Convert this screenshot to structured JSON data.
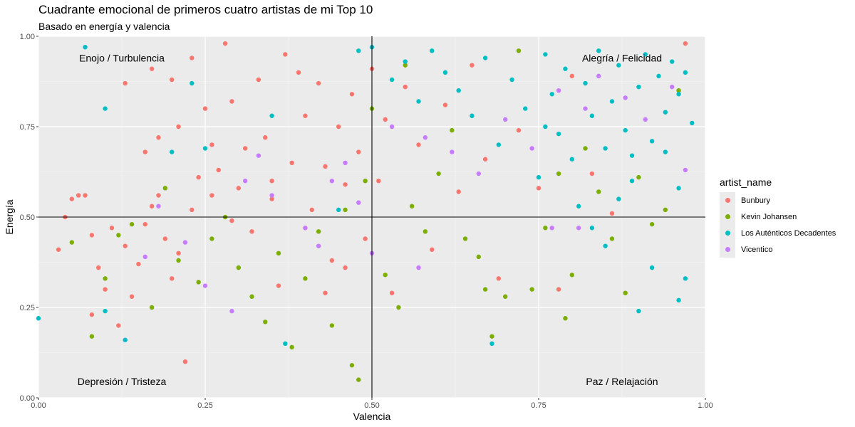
{
  "chart_data": {
    "type": "scatter",
    "title": "Cuadrante emocional de primeros cuatro artistas de mi Top 10",
    "subtitle": "Basado en energía y valencia",
    "xlabel": "Valencia",
    "ylabel": "Energía",
    "xlim": [
      0,
      1
    ],
    "ylim": [
      0,
      1
    ],
    "xticks": [
      "0.00",
      "0.25",
      "0.50",
      "0.75",
      "1.00"
    ],
    "yticks": [
      "0.00",
      "0.25",
      "0.50",
      "0.75",
      "1.00"
    ],
    "reference_lines": {
      "x": 0.5,
      "y": 0.5
    },
    "grid": true,
    "legend": {
      "title": "artist_name",
      "position": "right"
    },
    "quadrant_labels": {
      "top_left": "Enojo / Turbulencia",
      "top_right": "Alegría / Felicidad",
      "bottom_left": "Depresión / Tristeza",
      "bottom_right": "Paz / Relajación"
    },
    "series": [
      {
        "name": "Bunbury",
        "color": "#F8766D",
        "points": [
          [
            0.03,
            0.41
          ],
          [
            0.04,
            0.5
          ],
          [
            0.05,
            0.55
          ],
          [
            0.07,
            0.56
          ],
          [
            0.08,
            0.45
          ],
          [
            0.09,
            0.36
          ],
          [
            0.1,
            0.3
          ],
          [
            0.11,
            0.47
          ],
          [
            0.12,
            0.2
          ],
          [
            0.13,
            0.42
          ],
          [
            0.14,
            0.28
          ],
          [
            0.15,
            0.37
          ],
          [
            0.16,
            0.48
          ],
          [
            0.17,
            0.53
          ],
          [
            0.18,
            0.56
          ],
          [
            0.19,
            0.44
          ],
          [
            0.2,
            0.33
          ],
          [
            0.21,
            0.4
          ],
          [
            0.22,
            0.1
          ],
          [
            0.23,
            0.52
          ],
          [
            0.24,
            0.61
          ],
          [
            0.25,
            0.8
          ],
          [
            0.26,
            0.7
          ],
          [
            0.27,
            0.63
          ],
          [
            0.28,
            0.98
          ],
          [
            0.29,
            0.82
          ],
          [
            0.3,
            0.58
          ],
          [
            0.31,
            0.69
          ],
          [
            0.32,
            0.46
          ],
          [
            0.33,
            0.88
          ],
          [
            0.34,
            0.72
          ],
          [
            0.35,
            0.55
          ],
          [
            0.36,
            0.31
          ],
          [
            0.37,
            0.95
          ],
          [
            0.38,
            0.65
          ],
          [
            0.39,
            0.9
          ],
          [
            0.4,
            0.78
          ],
          [
            0.41,
            0.52
          ],
          [
            0.42,
            0.87
          ],
          [
            0.43,
            0.64
          ],
          [
            0.44,
            0.38
          ],
          [
            0.45,
            0.75
          ],
          [
            0.46,
            0.59
          ],
          [
            0.47,
            0.84
          ],
          [
            0.48,
            0.68
          ],
          [
            0.49,
            0.44
          ],
          [
            0.5,
            0.91
          ],
          [
            0.51,
            0.6
          ],
          [
            0.52,
            0.77
          ],
          [
            0.53,
            0.29
          ],
          [
            0.55,
            0.86
          ],
          [
            0.57,
            0.7
          ],
          [
            0.59,
            0.41
          ],
          [
            0.61,
            0.81
          ],
          [
            0.63,
            0.57
          ],
          [
            0.65,
            0.92
          ],
          [
            0.67,
            0.66
          ],
          [
            0.69,
            0.33
          ],
          [
            0.72,
            0.74
          ],
          [
            0.75,
            0.58
          ],
          [
            0.78,
            0.3
          ],
          [
            0.8,
            0.89
          ],
          [
            0.83,
            0.62
          ],
          [
            0.86,
            0.51
          ],
          [
            0.97,
            0.98
          ],
          [
            0.13,
            0.87
          ],
          [
            0.17,
            0.91
          ],
          [
            0.2,
            0.88
          ],
          [
            0.23,
            0.94
          ],
          [
            0.18,
            0.72
          ],
          [
            0.16,
            0.68
          ],
          [
            0.21,
            0.75
          ],
          [
            0.26,
            0.56
          ],
          [
            0.29,
            0.49
          ],
          [
            0.35,
            0.6
          ],
          [
            0.4,
            0.47
          ],
          [
            0.43,
            0.29
          ],
          [
            0.46,
            0.36
          ],
          [
            0.08,
            0.23
          ],
          [
            0.06,
            0.56
          ]
        ]
      },
      {
        "name": "Kevin Johansen",
        "color": "#7CAE00",
        "points": [
          [
            0.05,
            0.43
          ],
          [
            0.08,
            0.17
          ],
          [
            0.1,
            0.33
          ],
          [
            0.12,
            0.45
          ],
          [
            0.14,
            0.48
          ],
          [
            0.17,
            0.25
          ],
          [
            0.19,
            0.58
          ],
          [
            0.21,
            0.38
          ],
          [
            0.24,
            0.32
          ],
          [
            0.26,
            0.44
          ],
          [
            0.28,
            0.5
          ],
          [
            0.3,
            0.36
          ],
          [
            0.32,
            0.28
          ],
          [
            0.34,
            0.21
          ],
          [
            0.36,
            0.4
          ],
          [
            0.38,
            0.14
          ],
          [
            0.4,
            0.33
          ],
          [
            0.42,
            0.46
          ],
          [
            0.44,
            0.2
          ],
          [
            0.46,
            0.52
          ],
          [
            0.47,
            0.09
          ],
          [
            0.48,
            0.05
          ],
          [
            0.49,
            0.6
          ],
          [
            0.5,
            0.8
          ],
          [
            0.52,
            0.34
          ],
          [
            0.54,
            0.25
          ],
          [
            0.56,
            0.53
          ],
          [
            0.58,
            0.46
          ],
          [
            0.6,
            0.62
          ],
          [
            0.62,
            0.74
          ],
          [
            0.64,
            0.44
          ],
          [
            0.66,
            0.39
          ],
          [
            0.68,
            0.17
          ],
          [
            0.7,
            0.28
          ],
          [
            0.72,
            0.96
          ],
          [
            0.74,
            0.3
          ],
          [
            0.76,
            0.47
          ],
          [
            0.78,
            0.62
          ],
          [
            0.8,
            0.34
          ],
          [
            0.82,
            0.69
          ],
          [
            0.84,
            0.57
          ],
          [
            0.86,
            0.44
          ],
          [
            0.88,
            0.29
          ],
          [
            0.9,
            0.61
          ],
          [
            0.92,
            0.48
          ],
          [
            0.94,
            0.52
          ],
          [
            0.96,
            0.85
          ],
          [
            0.79,
            0.22
          ],
          [
            0.67,
            0.3
          ],
          [
            0.55,
            0.92
          ]
        ]
      },
      {
        "name": "Los Auténticos Decadentes",
        "color": "#00BFC4",
        "points": [
          [
            0.0,
            0.22
          ],
          [
            0.07,
            0.97
          ],
          [
            0.1,
            0.8
          ],
          [
            0.1,
            0.24
          ],
          [
            0.13,
            0.16
          ],
          [
            0.2,
            0.68
          ],
          [
            0.23,
            0.87
          ],
          [
            0.25,
            0.69
          ],
          [
            0.35,
            0.78
          ],
          [
            0.37,
            0.15
          ],
          [
            0.45,
            0.52
          ],
          [
            0.48,
            0.96
          ],
          [
            0.5,
            0.97
          ],
          [
            0.53,
            0.88
          ],
          [
            0.55,
            0.93
          ],
          [
            0.57,
            0.82
          ],
          [
            0.59,
            0.96
          ],
          [
            0.61,
            0.9
          ],
          [
            0.63,
            0.85
          ],
          [
            0.65,
            0.78
          ],
          [
            0.67,
            0.94
          ],
          [
            0.68,
            0.15
          ],
          [
            0.69,
            0.7
          ],
          [
            0.71,
            0.88
          ],
          [
            0.73,
            0.8
          ],
          [
            0.75,
            0.61
          ],
          [
            0.76,
            0.95
          ],
          [
            0.77,
            0.84
          ],
          [
            0.78,
            0.73
          ],
          [
            0.79,
            0.91
          ],
          [
            0.8,
            0.66
          ],
          [
            0.81,
            0.53
          ],
          [
            0.82,
            0.87
          ],
          [
            0.83,
            0.78
          ],
          [
            0.84,
            0.96
          ],
          [
            0.85,
            0.69
          ],
          [
            0.86,
            0.82
          ],
          [
            0.87,
            0.92
          ],
          [
            0.88,
            0.74
          ],
          [
            0.89,
            0.6
          ],
          [
            0.9,
            0.86
          ],
          [
            0.91,
            0.95
          ],
          [
            0.92,
            0.71
          ],
          [
            0.93,
            0.89
          ],
          [
            0.94,
            0.79
          ],
          [
            0.95,
            0.93
          ],
          [
            0.96,
            0.84
          ],
          [
            0.97,
            0.9
          ],
          [
            0.98,
            0.76
          ],
          [
            0.9,
            0.24
          ],
          [
            0.92,
            0.36
          ],
          [
            0.96,
            0.27
          ],
          [
            0.97,
            0.33
          ],
          [
            0.85,
            0.42
          ],
          [
            0.83,
            0.47
          ],
          [
            0.87,
            0.55
          ],
          [
            0.89,
            0.67
          ],
          [
            0.94,
            0.68
          ],
          [
            0.96,
            0.58
          ],
          [
            0.76,
            0.75
          ]
        ]
      },
      {
        "name": "Vicentico",
        "color": "#C77CFF",
        "points": [
          [
            0.16,
            0.39
          ],
          [
            0.18,
            0.53
          ],
          [
            0.22,
            0.43
          ],
          [
            0.25,
            0.31
          ],
          [
            0.29,
            0.24
          ],
          [
            0.31,
            0.6
          ],
          [
            0.33,
            0.67
          ],
          [
            0.35,
            0.56
          ],
          [
            0.4,
            0.47
          ],
          [
            0.42,
            0.42
          ],
          [
            0.44,
            0.6
          ],
          [
            0.46,
            0.65
          ],
          [
            0.48,
            0.54
          ],
          [
            0.53,
            0.75
          ],
          [
            0.58,
            0.72
          ],
          [
            0.62,
            0.68
          ],
          [
            0.66,
            0.62
          ],
          [
            0.7,
            0.77
          ],
          [
            0.74,
            0.69
          ],
          [
            0.78,
            0.85
          ],
          [
            0.82,
            0.8
          ],
          [
            0.84,
            0.89
          ],
          [
            0.88,
            0.83
          ],
          [
            0.91,
            0.77
          ],
          [
            0.95,
            0.86
          ],
          [
            0.97,
            0.63
          ],
          [
            0.81,
            0.47
          ],
          [
            0.77,
            0.47
          ],
          [
            0.57,
            0.36
          ],
          [
            0.5,
            0.4
          ]
        ]
      }
    ]
  }
}
